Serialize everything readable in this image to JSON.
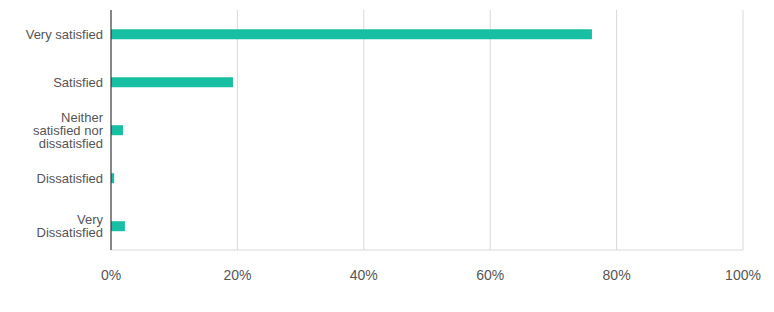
{
  "chart_data": {
    "type": "bar",
    "orientation": "horizontal",
    "categories": [
      "Very satisfied",
      "Satisfied",
      "Neither satisfied nor dissatisfied",
      "Dissatisfied",
      "Very Dissatisfied"
    ],
    "values": [
      76.1,
      19.3,
      1.9,
      0.5,
      2.2
    ],
    "color": "#19bfa3",
    "xlim": [
      0,
      100
    ],
    "xticks": [
      {
        "value": 0,
        "label": "0%"
      },
      {
        "value": 20,
        "label": "20%"
      },
      {
        "value": 40,
        "label": "40%"
      },
      {
        "value": 60,
        "label": "60%"
      },
      {
        "value": 80,
        "label": "80%"
      },
      {
        "value": 100,
        "label": "100%"
      }
    ],
    "grid": true
  }
}
